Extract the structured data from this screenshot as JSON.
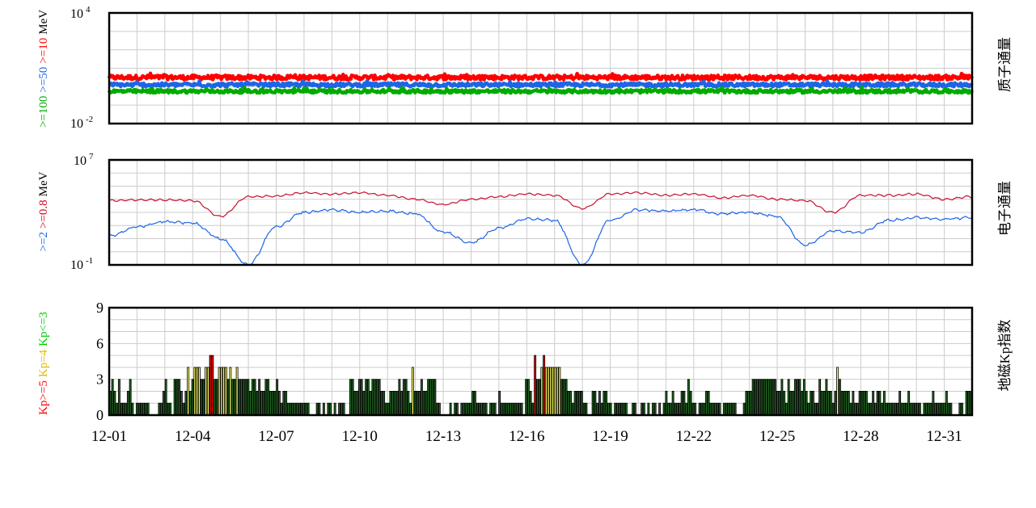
{
  "chart_data": [
    {
      "type": "line",
      "right_title": "质子通量",
      "ylabel_parts": [
        {
          "text": ">=100",
          "color": "#00aa00"
        },
        {
          "text": ">=50",
          "color": "#1e64e6"
        },
        {
          "text": ">=10",
          "color": "#ff0000"
        },
        {
          "text": "MeV",
          "color": "#000000"
        }
      ],
      "y_scale": "log",
      "ylim_exp": [
        -2,
        4
      ],
      "y_ticks": [
        {
          "base": "10",
          "exp": "-2"
        },
        {
          "base": "10",
          "exp": "4"
        }
      ],
      "series": [
        {
          "name": ">=10",
          "color": "#ff0000",
          "level_exp": 0.5,
          "noise": 0.12
        },
        {
          "name": ">=50",
          "color": "#1e64e6",
          "level_exp": 0.1,
          "noise": 0.1
        },
        {
          "name": ">=100",
          "color": "#00aa00",
          "level_exp": -0.25,
          "noise": 0.09
        }
      ]
    },
    {
      "type": "line",
      "right_title": "电子通量",
      "ylabel_parts": [
        {
          "text": ">=2",
          "color": "#1e64e6"
        },
        {
          "text": ">=0.8",
          "color": "#d0021b"
        },
        {
          "text": "MeV",
          "color": "#000000"
        }
      ],
      "y_scale": "log",
      "ylim_exp": [
        -1,
        7
      ],
      "y_ticks": [
        {
          "base": "10",
          "exp": "-1"
        },
        {
          "base": "10",
          "exp": "7"
        }
      ],
      "series": [
        {
          "name": ">=0.8",
          "color": "#c8102e",
          "day_values_exp": [
            3.9,
            3.95,
            3.95,
            3.9,
            2.7,
            4.2,
            4.25,
            4.5,
            4.4,
            4.5,
            4.3,
            4.0,
            3.6,
            4.0,
            4.2,
            4.4,
            4.3,
            3.3,
            4.4,
            4.5,
            4.3,
            4.4,
            4.1,
            4.3,
            4.0,
            3.9,
            3.0,
            4.3,
            4.3,
            4.4,
            4.0,
            4.2
          ]
        },
        {
          "name": ">=2",
          "color": "#1e64e6",
          "day_values_exp": [
            1.2,
            1.9,
            2.3,
            2.2,
            1.0,
            -1.0,
            1.9,
            3.0,
            3.2,
            3.0,
            3.1,
            2.9,
            1.5,
            0.7,
            1.8,
            2.5,
            2.4,
            -1.0,
            2.4,
            3.2,
            3.1,
            3.2,
            2.9,
            3.0,
            2.7,
            0.5,
            1.6,
            1.5,
            2.4,
            2.6,
            2.5,
            2.6
          ]
        }
      ]
    },
    {
      "type": "bar",
      "right_title": "地磁Kp指数",
      "ylabel_parts": [
        {
          "text": "Kp>=5",
          "color": "#ff0000"
        },
        {
          "text": "Kp=4",
          "color": "#e6b800"
        },
        {
          "text": "Kp<=3",
          "color": "#00cc00"
        }
      ],
      "ylim": [
        0,
        9
      ],
      "y_ticks": [
        "0",
        "3",
        "6",
        "9"
      ],
      "x_ticks": [
        "12-01",
        "12-04",
        "12-07",
        "12-10",
        "12-13",
        "12-16",
        "12-19",
        "12-22",
        "12-25",
        "12-28",
        "12-31"
      ],
      "colors": {
        "kp_high": "#ff0000",
        "kp_mid": "#ffff66",
        "kp_low": "#226622",
        "outline": "#000000"
      },
      "values": [
        2,
        3,
        2,
        1,
        3,
        1,
        1,
        1,
        2,
        3,
        1,
        0,
        1,
        1,
        1,
        1,
        1,
        1,
        0,
        0,
        0,
        0,
        1,
        1,
        2,
        3,
        1,
        1,
        0,
        3,
        3,
        3,
        2,
        1,
        2,
        4,
        2,
        3,
        4,
        4,
        4,
        3,
        3,
        4,
        4,
        5,
        5,
        3,
        3,
        4,
        4,
        4,
        4,
        3,
        4,
        3,
        3,
        4,
        3,
        3,
        3,
        3,
        3,
        2,
        3,
        3,
        2,
        3,
        2,
        2,
        3,
        3,
        2,
        2,
        2,
        3,
        2,
        1,
        2,
        2,
        1,
        1,
        1,
        1,
        1,
        1,
        1,
        1,
        1,
        1,
        0,
        0,
        0,
        1,
        1,
        0,
        1,
        0,
        1,
        1,
        0,
        1,
        0,
        1,
        1,
        1,
        0,
        0,
        3,
        3,
        2,
        2,
        3,
        3,
        2,
        3,
        3,
        2,
        3,
        3,
        3,
        3,
        2,
        2,
        1,
        1,
        2,
        2,
        2,
        2,
        3,
        2,
        3,
        3,
        2,
        1,
        4,
        2,
        2,
        2,
        3,
        2,
        2,
        3,
        3,
        3,
        3,
        1,
        1,
        0,
        0,
        0,
        0,
        1,
        0,
        1,
        1,
        0,
        1,
        1,
        1,
        1,
        1,
        2,
        2,
        1,
        1,
        1,
        1,
        1,
        0,
        1,
        1,
        1,
        0,
        2,
        1,
        1,
        1,
        1,
        1,
        1,
        1,
        1,
        1,
        1,
        0,
        3,
        3,
        2,
        1,
        5,
        3,
        3,
        4,
        5,
        4,
        4,
        4,
        4,
        4,
        4,
        4,
        3,
        3,
        3,
        2,
        2,
        1,
        2,
        2,
        2,
        2,
        1,
        1,
        0,
        0,
        2,
        2,
        1,
        2,
        1,
        2,
        2,
        1,
        1,
        0,
        1,
        1,
        1,
        1,
        1,
        1,
        0,
        0,
        1,
        1,
        0,
        0,
        1,
        1,
        0,
        1,
        0,
        1,
        1,
        0,
        1,
        0,
        1,
        2,
        1,
        1,
        2,
        1,
        1,
        1,
        2,
        2,
        1,
        3,
        2,
        1,
        1,
        0,
        1,
        1,
        1,
        2,
        2,
        1,
        1,
        1,
        1,
        1,
        0,
        1,
        1,
        1,
        1,
        1,
        1,
        0,
        0,
        0,
        1,
        2,
        2,
        2,
        3,
        3,
        3,
        3,
        3,
        3,
        3,
        3,
        3,
        3,
        3,
        2,
        2,
        3,
        2,
        1,
        3,
        2,
        2,
        3,
        3,
        3,
        2,
        3,
        2,
        1,
        2,
        2,
        1,
        1,
        3,
        2,
        2,
        3,
        2,
        2,
        1,
        2,
        4,
        3,
        2,
        2,
        2,
        2,
        1,
        2,
        1,
        1,
        2,
        2,
        2,
        2,
        1,
        1,
        2,
        1,
        2,
        2,
        1,
        2,
        1,
        1,
        1,
        1,
        1,
        1,
        2,
        1,
        1,
        1,
        2,
        1,
        1,
        1,
        1,
        1,
        0,
        1,
        1,
        1,
        1,
        2,
        1,
        1,
        1,
        1,
        1,
        2,
        1,
        1,
        0,
        0,
        0,
        1,
        1,
        0,
        2,
        2,
        2
      ]
    }
  ]
}
